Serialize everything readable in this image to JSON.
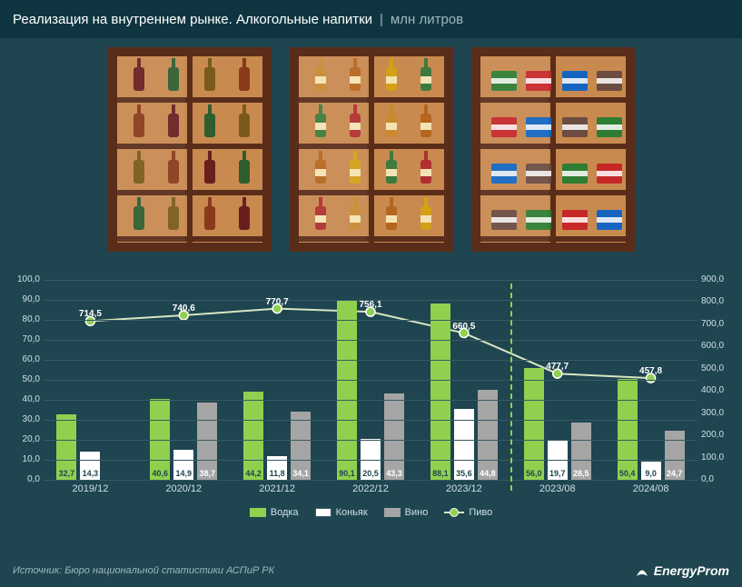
{
  "colors": {
    "bg": "#1e4550",
    "header_bg": "#0f3640",
    "text": "#ffffff",
    "muted": "#9fb8c0",
    "grid": "#3a5a64",
    "vodka": "#8fd14f",
    "cognac": "#ffffff",
    "wine": "#a5a5a5",
    "beer_line": "#d8e6c0",
    "beer_point_fill": "#8fd14f",
    "beer_point_stroke": "#ffffff",
    "cabinet_frame": "#5a2c1a",
    "cabinet_inside": "#c88a4f"
  },
  "header": {
    "title": "Реализация на внутреннем рынке. Алкогольные напитки",
    "unit": "млн литров",
    "separator": "|"
  },
  "chart": {
    "type": "bar+line",
    "left_axis": {
      "min": 0,
      "max": 100,
      "step": 10,
      "format_suffix": ",0"
    },
    "right_axis": {
      "min": 0,
      "max": 900,
      "step": 100,
      "format_suffix": ",0"
    },
    "categories": [
      "2019/12",
      "2020/12",
      "2021/12",
      "2022/12",
      "2023/12",
      "2023/08",
      "2024/08"
    ],
    "divider_after_index": 4,
    "series": {
      "vodka": {
        "label": "Водка",
        "values": [
          32.7,
          40.6,
          44.2,
          90.1,
          88.1,
          56.0,
          50.4
        ],
        "labels": [
          "32,7",
          "40,6",
          "44,2",
          "90,1",
          "88,1",
          "56,0",
          "50,4"
        ],
        "bar_label_color": "#1e4550"
      },
      "cognac": {
        "label": "Коньяк",
        "values": [
          14.3,
          14.9,
          11.8,
          20.5,
          35.6,
          19.7,
          9.0
        ],
        "labels": [
          "14,3",
          "14,9",
          "11,8",
          "20,5",
          "35,6",
          "19,7",
          "9,0"
        ],
        "bar_label_color": "#1e4550"
      },
      "wine": {
        "label": "Вино",
        "values": [
          null,
          38.7,
          34.1,
          43.3,
          44.8,
          28.5,
          24.7
        ],
        "labels": [
          "",
          "38,7",
          "34,1",
          "43,3",
          "44,8",
          "28,5",
          "24,7"
        ],
        "bar_label_color": "#ffffff"
      },
      "beer": {
        "label": "Пиво",
        "values": [
          714.5,
          740.6,
          770.7,
          756.1,
          660.5,
          477.7,
          457.8
        ],
        "labels": [
          "714,5",
          "740,6",
          "770,7",
          "756,1",
          "660,5",
          "477,7",
          "457,8"
        ]
      }
    }
  },
  "legend": {
    "vodka": "Водка",
    "cognac": "Коньяк",
    "wine": "Вино",
    "beer": "Пиво"
  },
  "footer": {
    "source": "Источник: Бюро национальной статистики АСПиР РК",
    "brand": "EnergyProm"
  }
}
